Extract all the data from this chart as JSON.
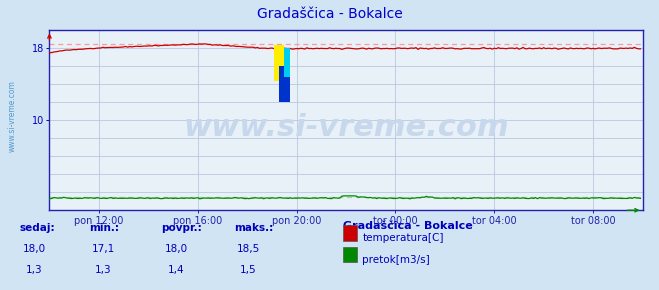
{
  "title": "Gradaščica - Bokalce",
  "bg_color": "#d0e4f4",
  "plot_bg_color": "#e8f0f8",
  "border_color": "#2222aa",
  "grid_color": "#b8c8dc",
  "xlabel_color": "#0000bb",
  "title_color": "#0000cc",
  "x_tick_labels": [
    "pon 12:00",
    "pon 16:00",
    "pon 20:00",
    "tor 00:00",
    "tor 04:00",
    "tor 08:00"
  ],
  "y_ticks": [
    2,
    4,
    6,
    8,
    10,
    12,
    14,
    16,
    18
  ],
  "ylim": [
    0,
    20
  ],
  "xlim": [
    0,
    288
  ],
  "temp_color": "#cc0000",
  "flow_color": "#008800",
  "dashed_temp_color": "#ff9999",
  "dashed_flow_color": "#99dd99",
  "watermark_text": "www.si-vreme.com",
  "watermark_color": "#c8d8ec",
  "watermark_fontsize": 22,
  "sidebar_text": "www.si-vreme.com",
  "sidebar_color": "#5599cc",
  "footer_bg": "#d0e4f4",
  "footer_text_color": "#0000bb",
  "legend_title": "Gradaščica - Bokalce",
  "legend_items": [
    "temperatura[C]",
    "pretok[m3/s]"
  ],
  "legend_colors": [
    "#cc0000",
    "#008800"
  ],
  "stats_headers": [
    "sedaj:",
    "min.:",
    "povpr.:",
    "maks.:"
  ],
  "stats_temp": [
    "18,0",
    "17,1",
    "18,0",
    "18,5"
  ],
  "stats_flow": [
    "1,3",
    "1,3",
    "1,4",
    "1,5"
  ],
  "max_dashed_temp": 18.5,
  "max_dashed_flow": 1.5,
  "logo_yellow": "#ffee00",
  "logo_blue": "#0033cc",
  "logo_cyan": "#00ccee"
}
